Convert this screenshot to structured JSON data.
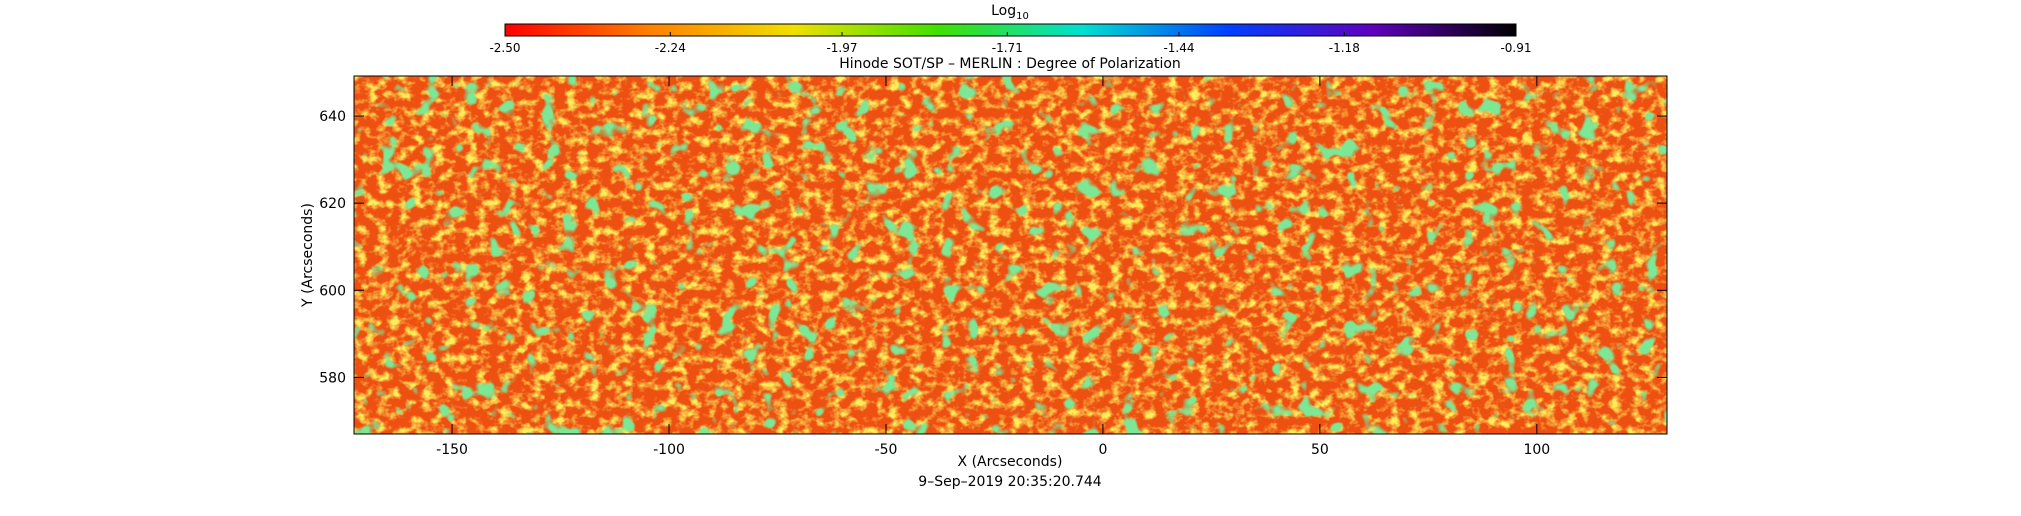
{
  "chart_data": {
    "type": "heatmap",
    "title": "Hinode SOT/SP – MERLIN : Degree of Polarization",
    "x_label": "X (Arcseconds)",
    "y_label": "Y (Arcseconds)",
    "footer": "9–Sep–2019 20:35:20.744",
    "xlim": [
      -172.6,
      130
    ],
    "ylim": [
      567,
      649.2
    ],
    "xticks": [
      -150,
      -100,
      -50,
      0,
      50,
      100
    ],
    "yticks": [
      580,
      600,
      620,
      640
    ],
    "colorbar": {
      "label": {
        "text": "Log",
        "subscript": "10"
      },
      "range": [
        -2.5,
        -0.91
      ],
      "ticks": [
        {
          "value": -2.5,
          "label": "-2.50"
        },
        {
          "value": -2.24,
          "label": "-2.24"
        },
        {
          "value": -1.97,
          "label": "-1.97"
        },
        {
          "value": -1.71,
          "label": "-1.71"
        },
        {
          "value": -1.44,
          "label": "-1.44"
        },
        {
          "value": -1.18,
          "label": "-1.18"
        },
        {
          "value": -0.91,
          "label": "-0.91"
        }
      ],
      "colors": [
        "#ff0000",
        "#ff8000",
        "#f0e000",
        "#40e000",
        "#00e0d0",
        "#0040ff",
        "#6000c0",
        "#000000"
      ]
    }
  }
}
